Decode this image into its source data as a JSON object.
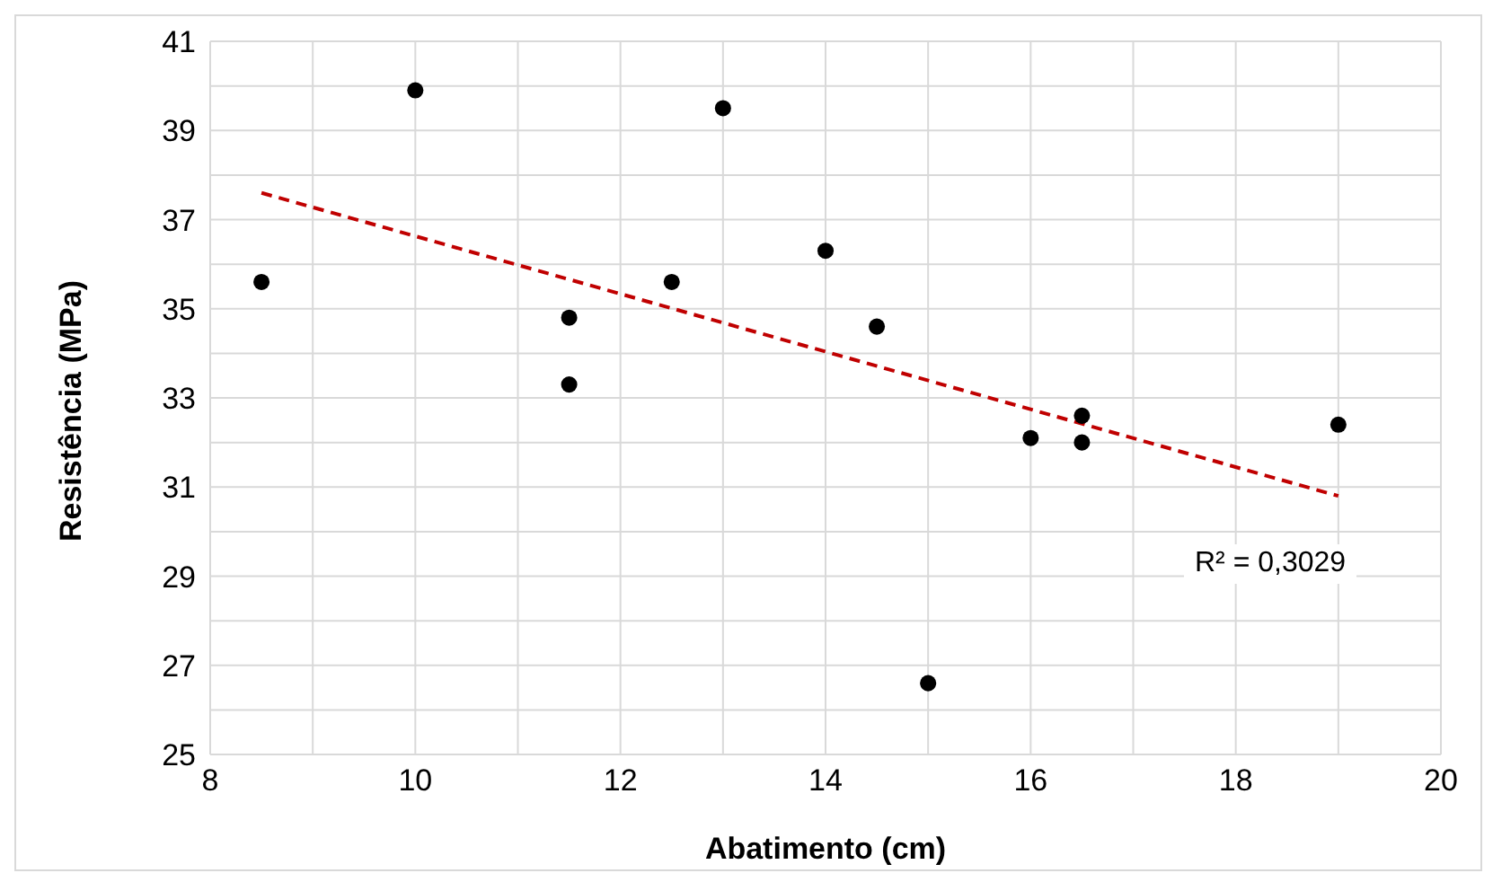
{
  "chart_data": {
    "type": "scatter",
    "xlabel": "Abatimento (cm)",
    "ylabel": "Resistência (MPa)",
    "xlim": [
      8,
      20
    ],
    "xticks": [
      8,
      10,
      12,
      14,
      16,
      18,
      20
    ],
    "ylim": [
      25,
      41
    ],
    "yticks": [
      25,
      27,
      29,
      31,
      33,
      35,
      37,
      39,
      41
    ],
    "grid": true,
    "legend": false,
    "series": [
      {
        "type": "scatter",
        "marker": "circle",
        "color": "#000000",
        "x": [
          8.5,
          10,
          11.5,
          11.5,
          12.5,
          13,
          14,
          14.5,
          15,
          16,
          16.5,
          16.5,
          19
        ],
        "values": [
          35.6,
          39.9,
          34.8,
          33.3,
          35.6,
          39.5,
          36.3,
          34.6,
          26.6,
          32.1,
          32.6,
          32.0,
          32.4
        ]
      },
      {
        "type": "line",
        "color": "#c00000",
        "line_style": "dashed",
        "x": [
          8.5,
          19
        ],
        "values": [
          37.6,
          30.8
        ]
      }
    ],
    "annotations": [
      "R² = 0,3029"
    ]
  }
}
